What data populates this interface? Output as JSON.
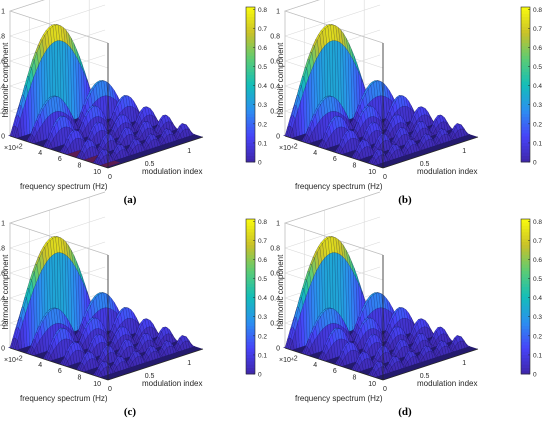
{
  "panel_labels": [
    "(a)",
    "(b)",
    "(c)",
    "(d)"
  ],
  "chart_data": [
    {
      "panel": "(a)",
      "type": "surface3d",
      "title": "",
      "xlabel": "modulation index",
      "ylabel": "frequency spectrum (Hz)",
      "zlabel": "harmonic component",
      "y_multiplier_label": "×10⁴",
      "x_ticks": [
        "0",
        "0.5",
        "1"
      ],
      "y_ticks": [
        "2",
        "4",
        "6",
        "8",
        "10"
      ],
      "z_ticks": [
        "0",
        "0.2",
        "0.4",
        "0.6",
        "0.8",
        "1"
      ],
      "xlim": [
        0,
        1.2
      ],
      "ylim": [
        0,
        10
      ],
      "zlim": [
        0,
        1
      ],
      "colorbar_ticks": [
        "0",
        "0.1",
        "0.2",
        "0.3",
        "0.4",
        "0.5",
        "0.6",
        "0.7",
        "0.8"
      ],
      "colorbar_range": [
        0,
        0.8
      ],
      "colormap": [
        "#3e26a8",
        "#4743f8",
        "#2c8ff0",
        "#13beb8",
        "#5bcc74",
        "#c9c129",
        "#f9fb0e"
      ],
      "peaks": [
        {
          "y": 0.0,
          "amplitude": 0.8
        },
        {
          "y": 1.7,
          "amplitude": 0.32
        },
        {
          "y": 3.4,
          "amplitude": 0.22
        },
        {
          "y": 5.1,
          "amplitude": 0.16
        },
        {
          "y": 6.8,
          "amplitude": 0.13
        },
        {
          "y": 8.5,
          "amplitude": 0.1
        }
      ],
      "floor_artifact": true,
      "grid": true
    },
    {
      "panel": "(b)",
      "type": "surface3d",
      "title": "",
      "xlabel": "modulation index",
      "ylabel": "frequency spectrum (Hz)",
      "zlabel": "harmonic component",
      "y_multiplier_label": "×10⁴",
      "x_ticks": [
        "0",
        "0.5",
        "1"
      ],
      "y_ticks": [
        "2",
        "4",
        "6",
        "8",
        "10"
      ],
      "z_ticks": [
        "0",
        "0.2",
        "0.4",
        "0.6",
        "0.8",
        "1"
      ],
      "xlim": [
        0,
        1.2
      ],
      "ylim": [
        0,
        10
      ],
      "zlim": [
        0,
        1
      ],
      "colorbar_ticks": [
        "0",
        "0.1",
        "0.2",
        "0.3",
        "0.4",
        "0.5",
        "0.6",
        "0.7",
        "0.8"
      ],
      "colorbar_range": [
        0,
        0.8
      ],
      "colormap": [
        "#3e26a8",
        "#4743f8",
        "#2c8ff0",
        "#13beb8",
        "#5bcc74",
        "#c9c129",
        "#f9fb0e"
      ],
      "peaks": [
        {
          "y": 0.0,
          "amplitude": 0.8
        },
        {
          "y": 1.7,
          "amplitude": 0.32
        },
        {
          "y": 3.4,
          "amplitude": 0.22
        },
        {
          "y": 5.1,
          "amplitude": 0.16
        },
        {
          "y": 6.8,
          "amplitude": 0.13
        },
        {
          "y": 8.5,
          "amplitude": 0.1
        }
      ],
      "floor_artifact": false,
      "grid": true
    },
    {
      "panel": "(c)",
      "type": "surface3d",
      "title": "",
      "xlabel": "modulation index",
      "ylabel": "frequency spectrum (Hz)",
      "zlabel": "harmonic component",
      "y_multiplier_label": "×10⁴",
      "x_ticks": [
        "0",
        "0.5",
        "1"
      ],
      "y_ticks": [
        "2",
        "4",
        "6",
        "8",
        "10"
      ],
      "z_ticks": [
        "0",
        "0.2",
        "0.4",
        "0.6",
        "0.8",
        "1"
      ],
      "xlim": [
        0,
        1.2
      ],
      "ylim": [
        0,
        10
      ],
      "zlim": [
        0,
        1
      ],
      "colorbar_ticks": [
        "0",
        "0.1",
        "0.2",
        "0.3",
        "0.4",
        "0.5",
        "0.6",
        "0.7",
        "0.8"
      ],
      "colorbar_range": [
        0,
        0.8
      ],
      "colormap": [
        "#3e26a8",
        "#4743f8",
        "#2c8ff0",
        "#13beb8",
        "#5bcc74",
        "#c9c129",
        "#f9fb0e"
      ],
      "peaks": [
        {
          "y": 0.0,
          "amplitude": 0.8
        },
        {
          "y": 1.7,
          "amplitude": 0.32
        },
        {
          "y": 3.4,
          "amplitude": 0.22
        },
        {
          "y": 5.1,
          "amplitude": 0.16
        },
        {
          "y": 6.8,
          "amplitude": 0.13
        },
        {
          "y": 8.5,
          "amplitude": 0.1
        }
      ],
      "floor_artifact": false,
      "grid": true
    },
    {
      "panel": "(d)",
      "type": "surface3d",
      "title": "",
      "xlabel": "modulation index",
      "ylabel": "frequency spectrum (Hz)",
      "zlabel": "harmonic component",
      "y_multiplier_label": "×10⁴",
      "x_ticks": [
        "0",
        "0.5",
        "1"
      ],
      "y_ticks": [
        "2",
        "4",
        "6",
        "8",
        "10"
      ],
      "z_ticks": [
        "0",
        "0.2",
        "0.4",
        "0.6",
        "0.8",
        "1"
      ],
      "xlim": [
        0,
        1.2
      ],
      "ylim": [
        0,
        10
      ],
      "zlim": [
        0,
        1
      ],
      "colorbar_ticks": [
        "0",
        "0.1",
        "0.2",
        "0.3",
        "0.4",
        "0.5",
        "0.6",
        "0.7",
        "0.8"
      ],
      "colorbar_range": [
        0,
        0.8
      ],
      "colormap": [
        "#3e26a8",
        "#4743f8",
        "#2c8ff0",
        "#13beb8",
        "#5bcc74",
        "#c9c129",
        "#f9fb0e"
      ],
      "peaks": [
        {
          "y": 0.0,
          "amplitude": 0.8
        },
        {
          "y": 1.7,
          "amplitude": 0.32
        },
        {
          "y": 3.4,
          "amplitude": 0.22
        },
        {
          "y": 5.1,
          "amplitude": 0.16
        },
        {
          "y": 6.8,
          "amplitude": 0.13
        },
        {
          "y": 8.5,
          "amplitude": 0.1
        }
      ],
      "floor_artifact": false,
      "grid": true
    }
  ]
}
